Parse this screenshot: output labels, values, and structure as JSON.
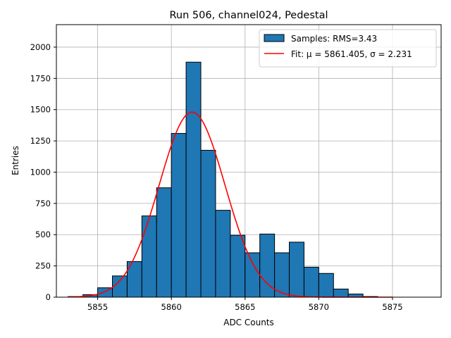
{
  "chart_data": {
    "type": "bar",
    "title": "Run 506, channel024, Pedestal",
    "xlabel": "ADC Counts",
    "ylabel": "Entries",
    "xlim": [
      5852.2,
      5878.3
    ],
    "ylim": [
      0,
      2180
    ],
    "xticks": [
      5855,
      5860,
      5865,
      5870,
      5875
    ],
    "yticks": [
      0,
      250,
      500,
      750,
      1000,
      1250,
      1500,
      1750,
      2000
    ],
    "grid": true,
    "bin_width": 1,
    "bins": [
      {
        "left": 5853,
        "value": 5
      },
      {
        "left": 5854,
        "value": 20
      },
      {
        "left": 5855,
        "value": 75
      },
      {
        "left": 5856,
        "value": 170
      },
      {
        "left": 5857,
        "value": 285
      },
      {
        "left": 5858,
        "value": 650
      },
      {
        "left": 5859,
        "value": 875
      },
      {
        "left": 5860,
        "value": 1310
      },
      {
        "left": 5861,
        "value": 1880
      },
      {
        "left": 5862,
        "value": 1175
      },
      {
        "left": 5863,
        "value": 695
      },
      {
        "left": 5864,
        "value": 495
      },
      {
        "left": 5865,
        "value": 355
      },
      {
        "left": 5866,
        "value": 505
      },
      {
        "left": 5867,
        "value": 355
      },
      {
        "left": 5868,
        "value": 440
      },
      {
        "left": 5869,
        "value": 240
      },
      {
        "left": 5870,
        "value": 190
      },
      {
        "left": 5871,
        "value": 65
      },
      {
        "left": 5872,
        "value": 25
      },
      {
        "left": 5873,
        "value": 5
      }
    ],
    "fit": {
      "mu": 5861.405,
      "sigma": 2.231,
      "amplitude": 1480,
      "x_range": [
        5853,
        5875
      ]
    },
    "legend": {
      "position": "upper right",
      "entries": [
        {
          "label": "Samples: RMS=3.43",
          "kind": "patch"
        },
        {
          "label": "Fit: μ = 5861.405, σ = 2.231",
          "kind": "line"
        }
      ]
    },
    "colors": {
      "bar_fill": "#1f77b4",
      "bar_edge": "#000000",
      "fit_line": "#ff0000",
      "grid": "#b0b0b0"
    }
  }
}
